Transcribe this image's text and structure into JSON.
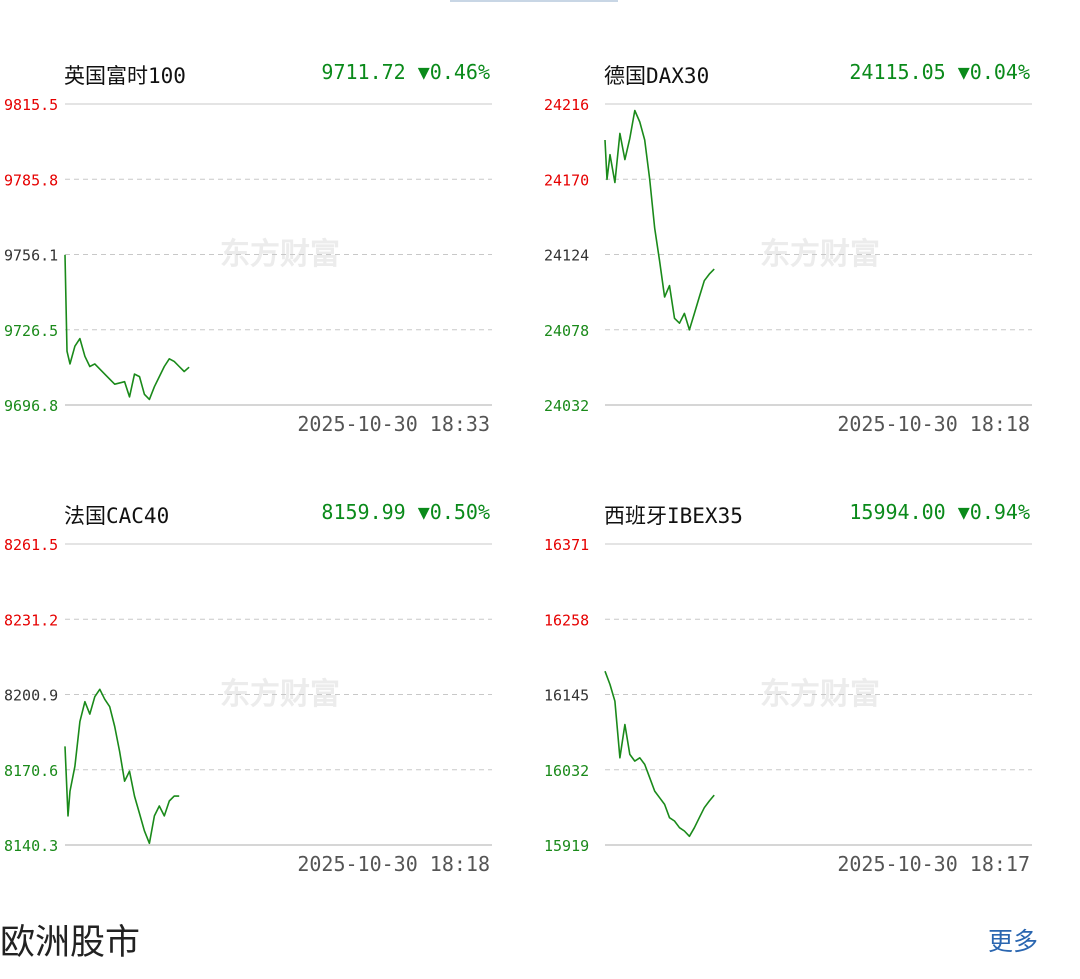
{
  "colors": {
    "line": "#1a8a1a",
    "up_label": "#e60000",
    "down_label": "#1a8a1a",
    "grid": "#c8c8c8",
    "change": "#0a8a1a",
    "link": "#2a66b0"
  },
  "watermark": "东方财富",
  "section": {
    "title": "欧洲股市",
    "more_label": "更多"
  },
  "charts": [
    {
      "name": "英国富时100",
      "price": "9711.72",
      "change": "▼0.46%",
      "timestamp": "2025-10-30 18:33",
      "chart_data": {
        "type": "line",
        "title": "英国富时100",
        "yticks": [
          "9815.5",
          "9785.8",
          "9756.1",
          "9726.5",
          "9696.8"
        ],
        "ylim": [
          9696.8,
          9815.5
        ],
        "prev_close": 9756.1,
        "x_extent": 430,
        "x": [
          0,
          2,
          5,
          10,
          15,
          20,
          25,
          30,
          40,
          50,
          60,
          65,
          70,
          75,
          80,
          85,
          90,
          100,
          105,
          110,
          115,
          120,
          125
        ],
        "values": [
          9756,
          9718,
          9713,
          9720,
          9723,
          9716,
          9712,
          9713,
          9709,
          9705,
          9706,
          9700,
          9709,
          9708,
          9701,
          9699,
          9704,
          9712,
          9715,
          9714,
          9712,
          9710,
          9711.72
        ]
      }
    },
    {
      "name": "德国DAX30",
      "price": "24115.05",
      "change": "▼0.04%",
      "timestamp": "2025-10-30 18:18",
      "chart_data": {
        "type": "line",
        "title": "德国DAX30",
        "yticks": [
          "24216",
          "24170",
          "24124",
          "24078",
          "24032"
        ],
        "ylim": [
          24032,
          24216
        ],
        "prev_close": 24124,
        "x_extent": 430,
        "x": [
          0,
          2,
          5,
          10,
          15,
          20,
          25,
          30,
          35,
          40,
          45,
          50,
          55,
          60,
          65,
          70,
          75,
          80,
          85,
          90,
          95,
          100,
          105,
          110
        ],
        "values": [
          24194,
          24170,
          24185,
          24168,
          24198,
          24182,
          24195,
          24212,
          24205,
          24194,
          24170,
          24140,
          24120,
          24098,
          24105,
          24085,
          24082,
          24088,
          24078,
          24088,
          24098,
          24108,
          24112,
          24115.05
        ]
      }
    },
    {
      "name": "法国CAC40",
      "price": "8159.99",
      "change": "▼0.50%",
      "timestamp": "2025-10-30 18:18",
      "chart_data": {
        "type": "line",
        "title": "法国CAC40",
        "yticks": [
          "8261.5",
          "8231.2",
          "8200.9",
          "8170.6",
          "8140.3"
        ],
        "ylim": [
          8140.3,
          8261.5
        ],
        "prev_close": 8200.9,
        "x_extent": 430,
        "x": [
          0,
          3,
          5,
          10,
          15,
          20,
          25,
          30,
          35,
          40,
          45,
          50,
          55,
          60,
          65,
          70,
          75,
          80,
          85,
          90,
          95,
          100,
          105,
          110,
          115
        ],
        "values": [
          8180,
          8152,
          8162,
          8172,
          8190,
          8198,
          8193,
          8200,
          8203,
          8199,
          8196,
          8188,
          8178,
          8166,
          8170,
          8160,
          8153,
          8146,
          8141,
          8152,
          8156,
          8152,
          8158,
          8160,
          8159.99
        ]
      }
    },
    {
      "name": "西班牙IBEX35",
      "price": "15994.00",
      "change": "▼0.94%",
      "timestamp": "2025-10-30 18:17",
      "chart_data": {
        "type": "line",
        "title": "西班牙IBEX35",
        "yticks": [
          "16371",
          "16258",
          "16145",
          "16032",
          "15919"
        ],
        "ylim": [
          15919,
          16371
        ],
        "prev_close": 16145,
        "x_extent": 430,
        "x": [
          0,
          5,
          10,
          15,
          20,
          25,
          30,
          35,
          40,
          45,
          50,
          55,
          60,
          65,
          70,
          75,
          80,
          85,
          90,
          95,
          100,
          105,
          110
        ],
        "values": [
          16180,
          16160,
          16135,
          16050,
          16100,
          16055,
          16045,
          16050,
          16040,
          16020,
          16000,
          15990,
          15980,
          15960,
          15955,
          15945,
          15940,
          15932,
          15945,
          15960,
          15975,
          15985,
          15994
        ]
      }
    }
  ]
}
